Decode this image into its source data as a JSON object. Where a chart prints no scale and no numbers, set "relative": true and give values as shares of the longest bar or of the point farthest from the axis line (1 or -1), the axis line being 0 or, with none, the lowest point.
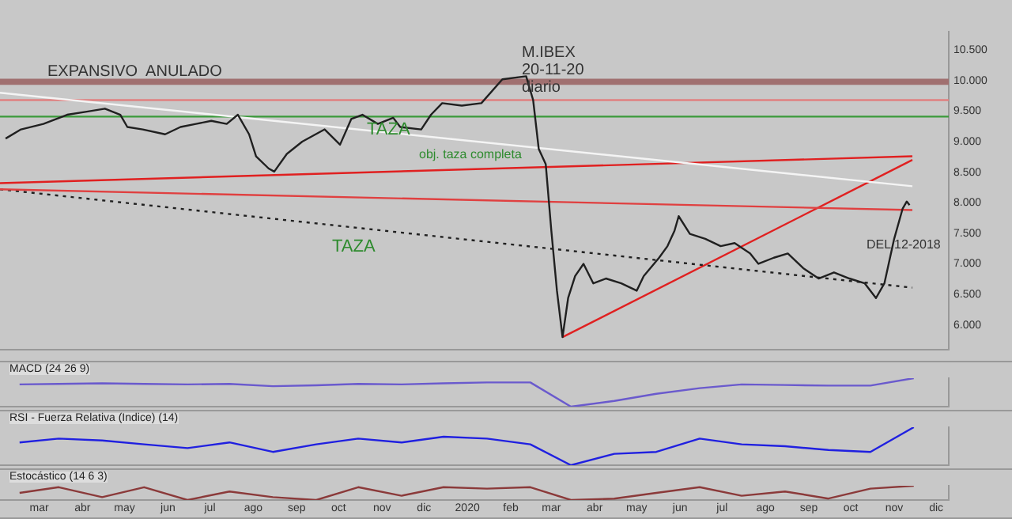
{
  "chart_data": [
    {
      "type": "line",
      "title": "M.IBEX\n20-11-20\ndiario",
      "annotations": [
        "EXPANSIVO  ANULADO",
        "TAZA",
        "obj. taza completa",
        "TAZA",
        "DEL 12-2018"
      ],
      "xlim": [
        "2019-02-01",
        "2020-12-10"
      ],
      "ylim": [
        5600,
        10800
      ],
      "yticks": [
        {
          "value": 6000,
          "label": "6.000"
        },
        {
          "value": 6500,
          "label": "6.500"
        },
        {
          "value": 7000,
          "label": "7.000"
        },
        {
          "value": 7500,
          "label": "7.500"
        },
        {
          "value": 8000,
          "label": "8.000"
        },
        {
          "value": 8500,
          "label": "8.500"
        },
        {
          "value": 9000,
          "label": "9.000"
        },
        {
          "value": 9500,
          "label": "9.500"
        },
        {
          "value": 10000,
          "label": "10.000"
        },
        {
          "value": 10500,
          "label": "10.500"
        }
      ],
      "tick_labels": "y",
      "grid": false,
      "legend": false,
      "marker": "none",
      "ref_lines": [
        {
          "axis": "y",
          "value": 9680,
          "label": null,
          "color": "#e08080"
        },
        {
          "axis": "y",
          "value": 9410,
          "label": null,
          "color": "#3a9a3a"
        }
      ],
      "bands": [
        {
          "axis": "y",
          "from": 9930,
          "to": 10030,
          "label": null,
          "color": "#a07070"
        }
      ],
      "series": [
        {
          "color": "#202020",
          "x": [
            "2019-02-05",
            "2019-02-16",
            "2019-03-04",
            "2019-03-21",
            "2019-04-04",
            "2019-04-17",
            "2019-04-28",
            "2019-05-03",
            "2019-05-14",
            "2019-05-30",
            "2019-06-10",
            "2019-06-21",
            "2019-07-02",
            "2019-07-13",
            "2019-07-21",
            "2019-07-29",
            "2019-08-03",
            "2019-08-12",
            "2019-08-16",
            "2019-08-25",
            "2019-09-05",
            "2019-09-21",
            "2019-10-02",
            "2019-10-10",
            "2019-10-18",
            "2019-10-29",
            "2019-11-09",
            "2019-11-14",
            "2019-11-29",
            "2019-12-06",
            "2019-12-14",
            "2019-12-28",
            "2020-01-11",
            "2020-01-26",
            "2020-02-12",
            "2020-02-17",
            "2020-02-21",
            "2020-02-26",
            "2020-03-01",
            "2020-03-05",
            "2020-03-09",
            "2020-03-13",
            "2020-03-18",
            "2020-03-24",
            "2020-03-31",
            "2020-04-09",
            "2020-04-20",
            "2020-05-01",
            "2020-05-06",
            "2020-05-17",
            "2020-05-23",
            "2020-05-28",
            "2020-05-31",
            "2020-06-08",
            "2020-06-19",
            "2020-06-30",
            "2020-07-10",
            "2020-07-21",
            "2020-07-27",
            "2020-08-07",
            "2020-08-17",
            "2020-08-28",
            "2020-09-08",
            "2020-09-19",
            "2020-09-30",
            "2020-10-11",
            "2020-10-19",
            "2020-10-25",
            "2020-11-01",
            "2020-11-07",
            "2020-11-10",
            "2020-11-12"
          ],
          "values": [
            9050,
            9200,
            9290,
            9440,
            9490,
            9540,
            9440,
            9240,
            9200,
            9120,
            9240,
            9290,
            9340,
            9290,
            9440,
            9120,
            8760,
            8560,
            8510,
            8800,
            9000,
            9200,
            8950,
            9370,
            9440,
            9290,
            9390,
            9240,
            9200,
            9440,
            9630,
            9590,
            9630,
            10020,
            10070,
            9680,
            8880,
            8630,
            7540,
            6560,
            5800,
            6440,
            6800,
            7000,
            6680,
            6760,
            6680,
            6560,
            6800,
            7100,
            7290,
            7540,
            7780,
            7490,
            7410,
            7290,
            7340,
            7170,
            7000,
            7100,
            7170,
            6930,
            6760,
            6860,
            6760,
            6680,
            6440,
            6680,
            7410,
            7900,
            8020,
            7960
          ]
        },
        {
          "color": "#f4f4f4",
          "x": [
            "2019-02-01",
            "2020-11-14"
          ],
          "values": [
            9800,
            8270
          ]
        },
        {
          "color": "#e02020",
          "x": [
            "2019-02-01",
            "2020-11-14"
          ],
          "values": [
            8320,
            8760
          ]
        },
        {
          "color": "#e04040",
          "x": [
            "2019-02-01",
            "2020-11-14"
          ],
          "values": [
            8220,
            7880
          ]
        },
        {
          "color": "#202020",
          "line_style": "dotted",
          "x": [
            "2019-02-01",
            "2020-11-14"
          ],
          "values": [
            8220,
            6610
          ]
        },
        {
          "color": "#e02020",
          "x": [
            "2020-03-09",
            "2020-11-14"
          ],
          "values": [
            5800,
            8700
          ]
        }
      ]
    },
    {
      "type": "line",
      "title": "MACD (24 26 9)",
      "relative": true,
      "tick_labels": false,
      "grid": false,
      "legend": false,
      "marker": "none",
      "xlim": [
        "2019-02-01",
        "2020-12-10"
      ],
      "x": [
        "2019-02-15",
        "2019-03-15",
        "2019-04-15",
        "2019-05-15",
        "2019-06-15",
        "2019-07-15",
        "2019-08-15",
        "2019-09-15",
        "2019-10-15",
        "2019-11-15",
        "2019-12-15",
        "2020-01-15",
        "2020-02-15",
        "2020-03-15",
        "2020-04-15",
        "2020-05-15",
        "2020-06-15",
        "2020-07-15",
        "2020-08-15",
        "2020-09-15",
        "2020-10-15",
        "2020-11-15"
      ],
      "series": [
        {
          "color": "#6a5acd",
          "values": [
            0.78,
            0.8,
            0.82,
            0.8,
            0.78,
            0.8,
            0.72,
            0.75,
            0.8,
            0.78,
            0.82,
            0.85,
            0.85,
            0,
            0.2,
            0.45,
            0.65,
            0.78,
            0.76,
            0.74,
            0.74,
            1
          ]
        }
      ]
    },
    {
      "type": "line",
      "title": "RSI - Fuerza Relativa (Indice) (14)",
      "relative": true,
      "tick_labels": false,
      "grid": false,
      "legend": false,
      "marker": "none",
      "xlim": [
        "2019-02-01",
        "2020-12-10"
      ],
      "x": [
        "2019-02-15",
        "2019-03-15",
        "2019-04-15",
        "2019-05-15",
        "2019-06-15",
        "2019-07-15",
        "2019-08-15",
        "2019-09-15",
        "2019-10-15",
        "2019-11-15",
        "2019-12-15",
        "2020-01-15",
        "2020-02-15",
        "2020-03-15",
        "2020-04-15",
        "2020-05-15",
        "2020-06-15",
        "2020-07-15",
        "2020-08-15",
        "2020-09-15",
        "2020-10-15",
        "2020-11-15"
      ],
      "series": [
        {
          "color": "#2020e0",
          "values": [
            0.6,
            0.7,
            0.65,
            0.55,
            0.45,
            0.6,
            0.35,
            0.55,
            0.7,
            0.6,
            0.75,
            0.7,
            0.55,
            0,
            0.3,
            0.35,
            0.7,
            0.55,
            0.5,
            0.4,
            0.35,
            1
          ]
        }
      ]
    },
    {
      "type": "line",
      "title": "Estocástico (14 6 3)",
      "relative": true,
      "tick_labels": "x",
      "grid": false,
      "legend": false,
      "marker": "none",
      "xlim": [
        "2019-02-01",
        "2020-12-10"
      ],
      "xticks": [
        {
          "value": "2019-03-01",
          "label": "mar"
        },
        {
          "value": "2019-04-01",
          "label": "abr"
        },
        {
          "value": "2019-05-01",
          "label": "may"
        },
        {
          "value": "2019-06-01",
          "label": "jun"
        },
        {
          "value": "2019-07-01",
          "label": "jul"
        },
        {
          "value": "2019-08-01",
          "label": "ago"
        },
        {
          "value": "2019-09-01",
          "label": "sep"
        },
        {
          "value": "2019-10-01",
          "label": "oct"
        },
        {
          "value": "2019-11-01",
          "label": "nov"
        },
        {
          "value": "2019-12-01",
          "label": "dic"
        },
        {
          "value": "2020-01-01",
          "label": "2020"
        },
        {
          "value": "2020-02-01",
          "label": "feb"
        },
        {
          "value": "2020-03-01",
          "label": "mar"
        },
        {
          "value": "2020-04-01",
          "label": "abr"
        },
        {
          "value": "2020-05-01",
          "label": "may"
        },
        {
          "value": "2020-06-01",
          "label": "jun"
        },
        {
          "value": "2020-07-01",
          "label": "jul"
        },
        {
          "value": "2020-08-01",
          "label": "ago"
        },
        {
          "value": "2020-09-01",
          "label": "sep"
        },
        {
          "value": "2020-10-01",
          "label": "oct"
        },
        {
          "value": "2020-11-01",
          "label": "nov"
        },
        {
          "value": "2020-12-01",
          "label": "dic"
        }
      ],
      "x": [
        "2019-02-15",
        "2019-03-15",
        "2019-04-15",
        "2019-05-15",
        "2019-06-15",
        "2019-07-15",
        "2019-08-15",
        "2019-09-15",
        "2019-10-15",
        "2019-11-15",
        "2019-12-15",
        "2020-01-15",
        "2020-02-15",
        "2020-03-15",
        "2020-04-15",
        "2020-05-15",
        "2020-06-15",
        "2020-07-15",
        "2020-08-15",
        "2020-09-15",
        "2020-10-15",
        "2020-11-15"
      ],
      "series": [
        {
          "color": "#8b3a3a",
          "values": [
            0.5,
            0.9,
            0.2,
            0.9,
            0,
            0.6,
            0.2,
            0,
            0.9,
            0.3,
            0.9,
            0.8,
            0.9,
            0,
            0.1,
            0.5,
            0.9,
            0.3,
            0.6,
            0.1,
            0.8,
            1
          ]
        }
      ]
    }
  ]
}
